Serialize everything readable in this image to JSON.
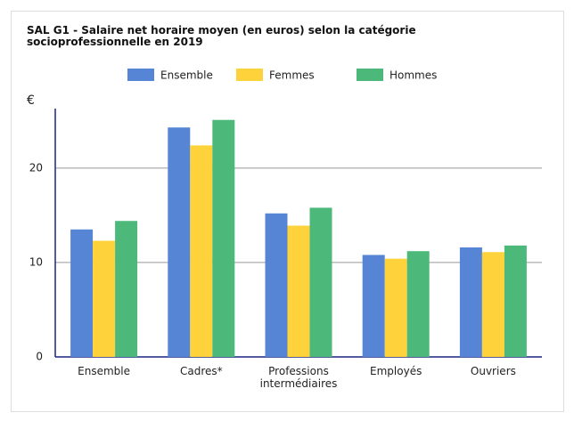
{
  "chart_data": {
    "type": "bar",
    "title": "SAL G1 - Salaire net horaire moyen (en euros) selon la catégorie socioprofessionnelle en 2019",
    "ylabel": "€",
    "categories": [
      "Ensemble",
      "Cadres*",
      "Professions intermédiaires",
      "Employés",
      "Ouvriers"
    ],
    "series": [
      {
        "name": "Ensemble",
        "color": "#5585d4",
        "values": [
          13.5,
          24.3,
          15.2,
          10.8,
          11.6
        ]
      },
      {
        "name": "Femmes",
        "color": "#fdd23a",
        "values": [
          12.3,
          22.4,
          13.9,
          10.4,
          11.1
        ]
      },
      {
        "name": "Hommes",
        "color": "#4cb87a",
        "values": [
          14.4,
          25.1,
          15.8,
          11.2,
          11.8
        ]
      }
    ],
    "ylim": [
      0,
      26.3
    ],
    "yticks": [
      0,
      10,
      20
    ],
    "grid": true,
    "legend": "top"
  }
}
